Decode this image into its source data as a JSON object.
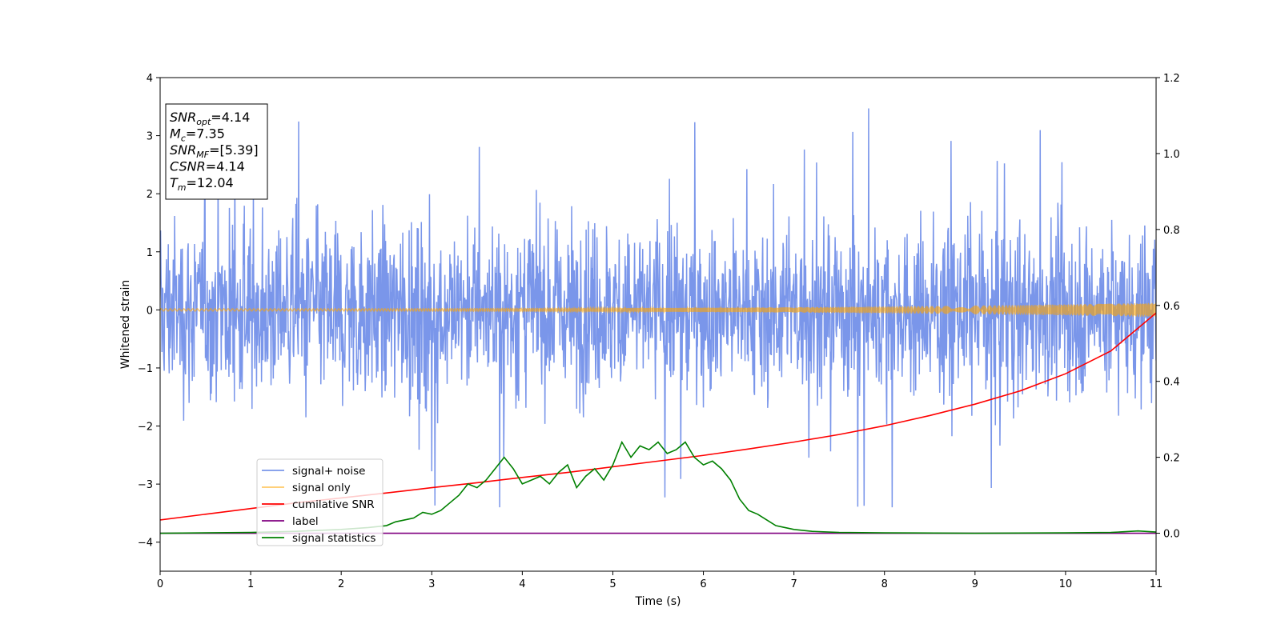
{
  "chart_data": {
    "type": "line",
    "xlabel": "Time (s)",
    "ylabel": "Whitened strain",
    "xlim": [
      0,
      11
    ],
    "ylim": [
      -4.5,
      4.0
    ],
    "y2lim": [
      -0.1,
      1.2
    ],
    "x_ticks": [
      "0",
      "1",
      "2",
      "3",
      "4",
      "5",
      "6",
      "7",
      "8",
      "9",
      "10",
      "11"
    ],
    "y_ticks": [
      "−4",
      "−3",
      "−2",
      "−1",
      "0",
      "1",
      "2",
      "3",
      "4"
    ],
    "y2_ticks": [
      "0.0",
      "0.2",
      "0.4",
      "0.6",
      "0.8",
      "1.0",
      "1.2"
    ],
    "grid": false,
    "legend_position": "lower-left",
    "annotation": {
      "lines": [
        {
          "main": "SNR",
          "sub": "opt",
          "value": "=4.14"
        },
        {
          "main": "M",
          "sub": "c",
          "value": "=7.35"
        },
        {
          "main": "SNR",
          "sub": "MF",
          "value": "=[5.39]"
        },
        {
          "main": "CSNR",
          "sub": "",
          "value": "=4.14"
        },
        {
          "main": "T",
          "sub": "m",
          "value": "=12.04"
        }
      ]
    },
    "series": [
      {
        "name": "signal+ noise",
        "color": "#4169e1",
        "axis": "left",
        "style": "noise",
        "sigma": 0.75,
        "sample_count": 2200,
        "band_core": [
          -1.4,
          1.4
        ],
        "spike_max": 3.65,
        "spike_min": -3.4
      },
      {
        "name": "signal only",
        "color": "#ffa500",
        "axis": "left",
        "style": "chirp",
        "amplitude_start": 0.02,
        "amplitude_end": 0.12
      },
      {
        "name": "cumilative SNR",
        "color": "#ff0000",
        "axis": "right",
        "x": [
          0,
          0.5,
          1,
          1.5,
          2,
          2.5,
          3,
          3.5,
          4,
          4.5,
          5,
          5.5,
          6,
          6.5,
          7,
          7.5,
          8,
          8.5,
          9,
          9.5,
          10,
          10.5,
          11
        ],
        "values": [
          0.035,
          0.05,
          0.065,
          0.08,
          0.093,
          0.106,
          0.12,
          0.133,
          0.147,
          0.16,
          0.175,
          0.19,
          0.205,
          0.222,
          0.24,
          0.26,
          0.283,
          0.31,
          0.34,
          0.375,
          0.42,
          0.48,
          0.58
        ]
      },
      {
        "name": "label",
        "color": "#800080",
        "axis": "right",
        "x": [
          0,
          11
        ],
        "values": [
          0.0,
          0.0
        ]
      },
      {
        "name": "signal statistics",
        "color": "#008000",
        "axis": "right",
        "x": [
          0,
          1,
          1.5,
          2,
          2.3,
          2.5,
          2.6,
          2.7,
          2.8,
          2.9,
          3.0,
          3.1,
          3.2,
          3.3,
          3.4,
          3.5,
          3.6,
          3.7,
          3.8,
          3.9,
          4.0,
          4.1,
          4.2,
          4.3,
          4.4,
          4.5,
          4.6,
          4.7,
          4.8,
          4.9,
          5.0,
          5.1,
          5.2,
          5.3,
          5.4,
          5.5,
          5.6,
          5.7,
          5.8,
          5.9,
          6.0,
          6.1,
          6.2,
          6.3,
          6.4,
          6.5,
          6.6,
          6.7,
          6.8,
          6.9,
          7.0,
          7.2,
          7.5,
          8,
          9,
          10,
          10.5,
          10.8,
          11
        ],
        "values": [
          0.0,
          0.002,
          0.005,
          0.01,
          0.015,
          0.02,
          0.03,
          0.035,
          0.04,
          0.055,
          0.05,
          0.06,
          0.08,
          0.1,
          0.13,
          0.12,
          0.14,
          0.17,
          0.2,
          0.17,
          0.13,
          0.14,
          0.15,
          0.13,
          0.16,
          0.18,
          0.12,
          0.15,
          0.17,
          0.14,
          0.18,
          0.24,
          0.2,
          0.23,
          0.22,
          0.24,
          0.21,
          0.22,
          0.24,
          0.2,
          0.18,
          0.19,
          0.17,
          0.14,
          0.09,
          0.06,
          0.05,
          0.035,
          0.02,
          0.015,
          0.01,
          0.005,
          0.002,
          0.001,
          0.0,
          0.001,
          0.002,
          0.006,
          0.003
        ]
      }
    ]
  }
}
